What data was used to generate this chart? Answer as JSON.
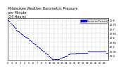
{
  "title": "Milwaukee Weather Barometric Pressure\nper Minute\n(24 Hours)",
  "title_fontsize": 3.5,
  "background_color": "#ffffff",
  "plot_bg_color": "#ffffff",
  "dot_color": "#0000ff",
  "dot_size": 0.3,
  "legend_color": "#0000ff",
  "legend_label": "Barometric Pressure",
  "ylim_min": 29.35,
  "ylim_max": 29.82,
  "xlim_min": 0,
  "xlim_max": 1440,
  "ytick_values": [
    29.4,
    29.45,
    29.5,
    29.55,
    29.6,
    29.65,
    29.7,
    29.75,
    29.8
  ],
  "ytick_labels": [
    "29.4",
    "29.45",
    "29.5",
    "29.55",
    "29.6",
    "29.65",
    "29.7",
    "29.75",
    "29.8"
  ],
  "xtick_values": [
    0,
    60,
    120,
    180,
    240,
    300,
    360,
    420,
    480,
    540,
    600,
    660,
    720,
    780,
    840,
    900,
    960,
    1020,
    1080,
    1140,
    1200,
    1260,
    1320,
    1380
  ],
  "xtick_labels": [
    "0",
    "1",
    "2",
    "3",
    "4",
    "5",
    "6",
    "7",
    "8",
    "9",
    "10",
    "11",
    "12",
    "13",
    "14",
    "15",
    "16",
    "17",
    "18",
    "19",
    "20",
    "21",
    "22",
    "23"
  ],
  "grid_color": "#aaaaaa",
  "grid_style": ":",
  "tick_fontsize": 2.5,
  "data_x": [
    0,
    5,
    10,
    15,
    20,
    25,
    30,
    35,
    40,
    45,
    50,
    55,
    60,
    65,
    70,
    75,
    80,
    85,
    90,
    95,
    100,
    105,
    110,
    115,
    120,
    125,
    130,
    135,
    140,
    145,
    150,
    155,
    160,
    165,
    170,
    175,
    180,
    185,
    190,
    195,
    200,
    205,
    210,
    215,
    220,
    225,
    230,
    235,
    240,
    245,
    250,
    255,
    260,
    265,
    270,
    275,
    280,
    285,
    290,
    295,
    300,
    305,
    310,
    315,
    320,
    325,
    330,
    335,
    340,
    345,
    350,
    355,
    360,
    365,
    370,
    375,
    380,
    385,
    390,
    395,
    400,
    405,
    410,
    415,
    420,
    425,
    430,
    435,
    440,
    445,
    450,
    455,
    460,
    465,
    470,
    475,
    480,
    485,
    490,
    495,
    500,
    505,
    510,
    515,
    520,
    525,
    530,
    535,
    540,
    545,
    550,
    555,
    560,
    565,
    570,
    575,
    580,
    585,
    590,
    595,
    600,
    605,
    610,
    615,
    620,
    625,
    630,
    635,
    640,
    645,
    650,
    655,
    660,
    665,
    670,
    675,
    680,
    685,
    690,
    695,
    700,
    705,
    710,
    715,
    720,
    725,
    730,
    735,
    740,
    745,
    750,
    755,
    760,
    765,
    770,
    775,
    780,
    785,
    790,
    795,
    800,
    805,
    810,
    815,
    820,
    825,
    830,
    835,
    840,
    845,
    850,
    855,
    860,
    865,
    870,
    875,
    880,
    885,
    890,
    895,
    900,
    905,
    910,
    915,
    920,
    925,
    930,
    935,
    940,
    945,
    950,
    955,
    960,
    965,
    970,
    975,
    980,
    985,
    990,
    995,
    1000,
    1005,
    1010,
    1015,
    1020,
    1025,
    1030,
    1035,
    1040,
    1045,
    1050,
    1055,
    1060,
    1065,
    1070,
    1075,
    1080,
    1085,
    1090,
    1095,
    1100,
    1105,
    1110,
    1115,
    1120,
    1125,
    1130,
    1135,
    1140,
    1145,
    1150,
    1155,
    1160,
    1165,
    1170,
    1175,
    1180,
    1185,
    1190,
    1195,
    1200,
    1205,
    1210,
    1215,
    1220,
    1225,
    1230,
    1235,
    1240,
    1245,
    1250,
    1255,
    1260,
    1265,
    1270,
    1275,
    1280,
    1285,
    1290,
    1295,
    1300,
    1305,
    1310,
    1315,
    1320,
    1325,
    1330,
    1335,
    1340,
    1345,
    1350,
    1355,
    1360,
    1365,
    1370,
    1375,
    1380,
    1385,
    1390,
    1395,
    1400,
    1405,
    1410,
    1415,
    1420,
    1425,
    1430,
    1435
  ],
  "data_y": [
    29.8,
    29.8,
    29.79,
    29.79,
    29.79,
    29.78,
    29.78,
    29.77,
    29.77,
    29.76,
    29.76,
    29.75,
    29.75,
    29.74,
    29.74,
    29.74,
    29.73,
    29.73,
    29.72,
    29.72,
    29.71,
    29.71,
    29.71,
    29.7,
    29.7,
    29.69,
    29.68,
    29.68,
    29.68,
    29.67,
    29.67,
    29.67,
    29.67,
    29.66,
    29.66,
    29.66,
    29.65,
    29.65,
    29.65,
    29.64,
    29.64,
    29.64,
    29.64,
    29.63,
    29.63,
    29.63,
    29.62,
    29.62,
    29.62,
    29.62,
    29.61,
    29.61,
    29.61,
    29.6,
    29.6,
    29.6,
    29.6,
    29.59,
    29.59,
    29.59,
    29.58,
    29.58,
    29.58,
    29.57,
    29.57,
    29.57,
    29.56,
    29.56,
    29.56,
    29.55,
    29.55,
    29.55,
    29.54,
    29.54,
    29.54,
    29.54,
    29.53,
    29.53,
    29.53,
    29.52,
    29.52,
    29.52,
    29.51,
    29.51,
    29.51,
    29.5,
    29.5,
    29.5,
    29.49,
    29.49,
    29.49,
    29.48,
    29.48,
    29.48,
    29.47,
    29.47,
    29.47,
    29.46,
    29.46,
    29.46,
    29.45,
    29.45,
    29.45,
    29.44,
    29.44,
    29.44,
    29.43,
    29.43,
    29.43,
    29.42,
    29.42,
    29.42,
    29.41,
    29.41,
    29.41,
    29.4,
    29.4,
    29.4,
    29.39,
    29.39,
    29.39,
    29.38,
    29.38,
    29.38,
    29.37,
    29.37,
    29.37,
    29.37,
    29.36,
    29.36,
    29.36,
    29.36,
    29.36,
    29.36,
    29.36,
    29.36,
    29.36,
    29.36,
    29.36,
    29.36,
    29.36,
    29.36,
    29.36,
    29.36,
    29.36,
    29.36,
    29.36,
    29.36,
    29.36,
    29.37,
    29.37,
    29.37,
    29.37,
    29.37,
    29.37,
    29.37,
    29.37,
    29.38,
    29.38,
    29.38,
    29.38,
    29.38,
    29.38,
    29.39,
    29.39,
    29.39,
    29.39,
    29.39,
    29.4,
    29.4,
    29.4,
    29.4,
    29.4,
    29.41,
    29.41,
    29.41,
    29.41,
    29.41,
    29.42,
    29.42,
    29.42,
    29.42,
    29.42,
    29.42,
    29.42,
    29.42,
    29.42,
    29.42,
    29.42,
    29.42,
    29.42,
    29.42,
    29.42,
    29.42,
    29.42,
    29.42,
    29.43,
    29.43,
    29.43,
    29.43,
    29.43,
    29.43,
    29.43,
    29.43,
    29.43,
    29.43,
    29.43,
    29.43,
    29.43,
    29.43,
    29.43,
    29.43,
    29.43,
    29.43,
    29.43,
    29.43,
    29.43,
    29.43,
    29.43,
    29.43,
    29.43,
    29.43,
    29.43,
    29.43,
    29.43,
    29.43,
    29.43,
    29.43,
    29.43,
    29.43,
    29.44,
    29.44,
    29.44,
    29.44,
    29.44,
    29.44,
    29.44,
    29.44,
    29.44,
    29.44,
    29.44,
    29.44,
    29.44,
    29.44,
    29.44,
    29.44,
    29.44,
    29.44,
    29.44,
    29.44,
    29.44,
    29.44,
    29.44,
    29.44,
    29.44,
    29.44,
    29.44,
    29.44,
    29.44,
    29.44,
    29.44,
    29.44,
    29.44,
    29.44,
    29.44,
    29.44,
    29.44,
    29.44,
    29.44,
    29.44,
    29.44,
    29.44,
    29.44,
    29.44,
    29.44,
    29.44,
    29.44,
    29.44,
    29.44,
    29.44,
    29.44,
    29.44,
    29.43,
    29.43,
    29.43,
    29.43,
    29.43,
    29.43
  ]
}
